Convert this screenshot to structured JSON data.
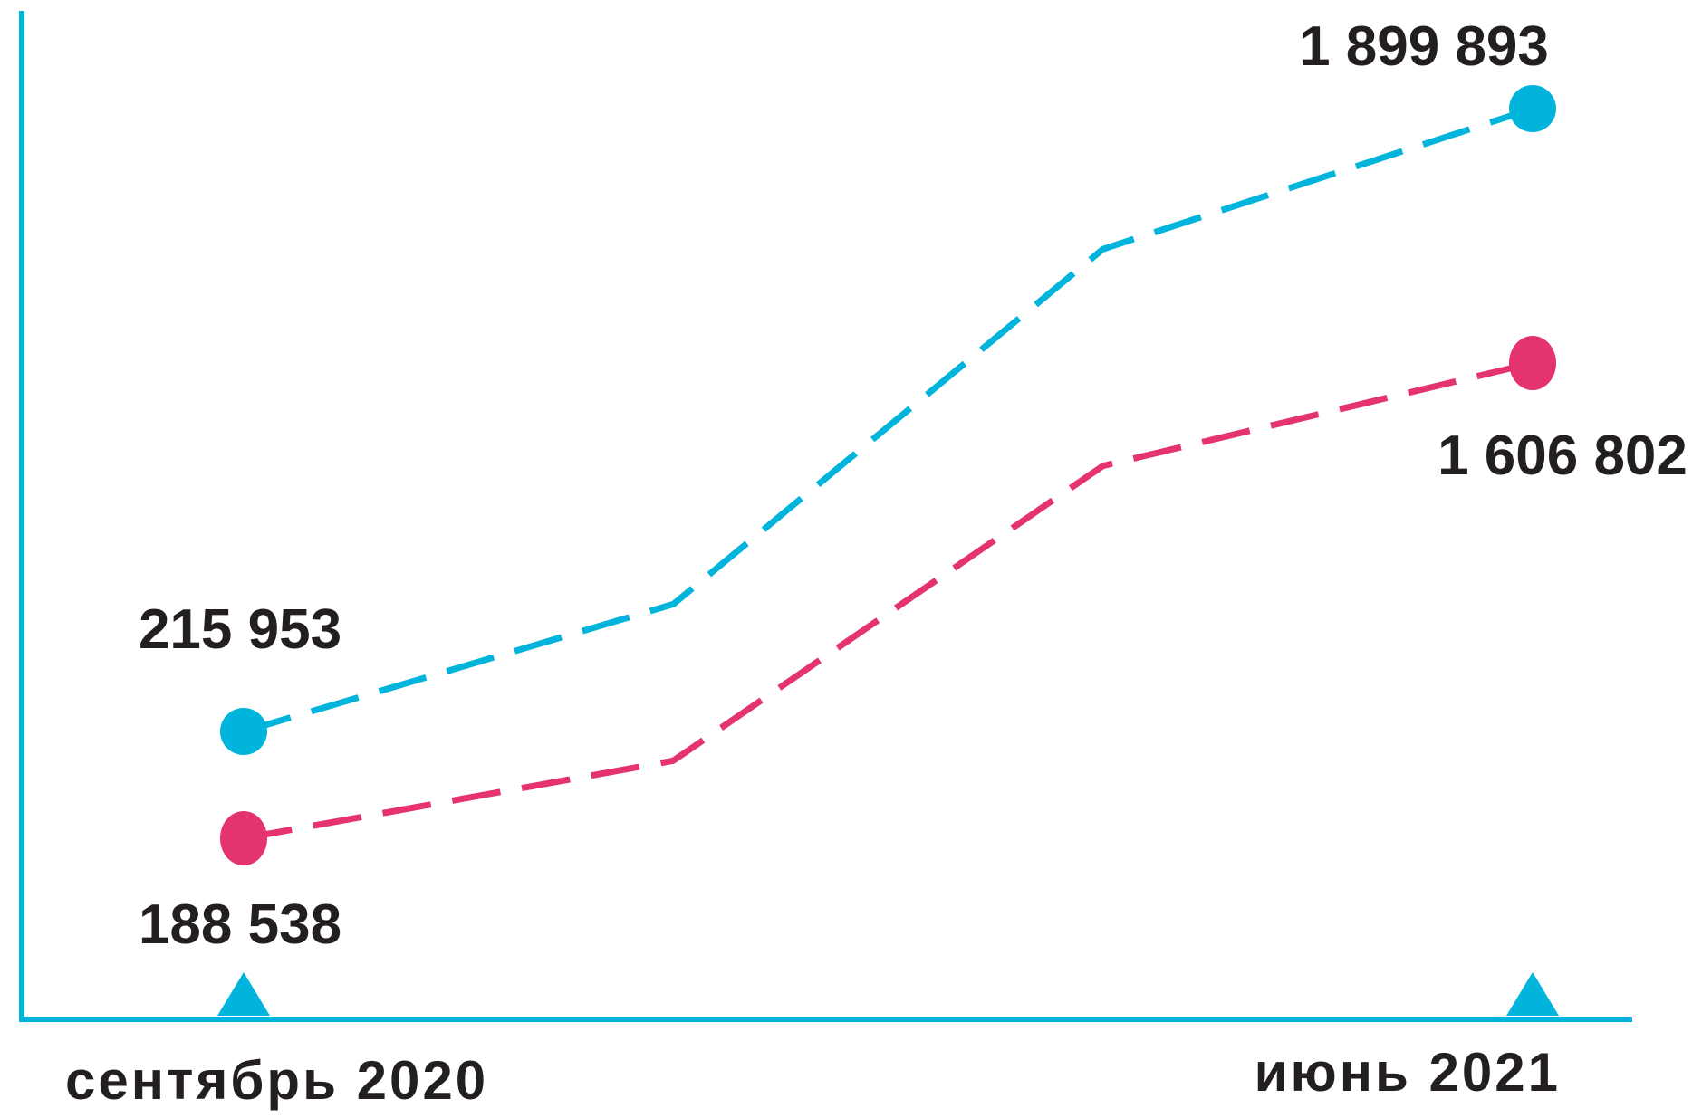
{
  "chart_data": {
    "type": "line",
    "line_style": "dashed",
    "grid": false,
    "legend": "none",
    "axis_color": "#00B4DB",
    "x": [
      "2020-09",
      "2020-12",
      "2021-03",
      "2021-06"
    ],
    "x_ticks": [
      {
        "x": "2020-09",
        "label": "сентябрь 2020"
      },
      {
        "x": "2021-06",
        "label": "июнь 2021"
      }
    ],
    "series": [
      {
        "color": "#00B4DB",
        "values": [
          215953,
          560000,
          1520000,
          1899893
        ],
        "labels": [
          "215 953",
          null,
          null,
          "1 899 893"
        ]
      },
      {
        "color": "#E4336D",
        "values": [
          188538,
          420000,
          1300000,
          1606802
        ],
        "labels": [
          "188 538",
          null,
          null,
          "1 606 802"
        ]
      }
    ]
  }
}
